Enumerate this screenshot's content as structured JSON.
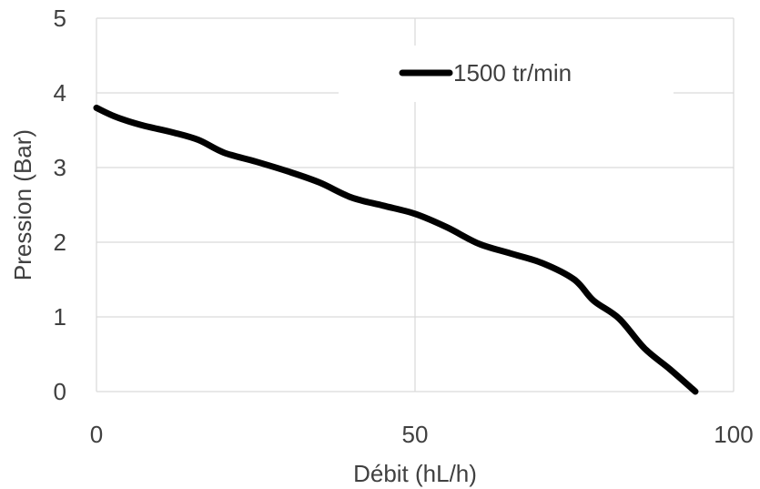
{
  "chart_data": {
    "type": "line",
    "xlabel": "Débit (hL/h)",
    "ylabel": "Pression (Bar)",
    "xlim": [
      0,
      100
    ],
    "ylim": [
      0,
      5
    ],
    "xticks": [
      0,
      50,
      100
    ],
    "yticks": [
      0,
      1,
      2,
      3,
      4,
      5
    ],
    "grid": true,
    "legend_position": "top-right",
    "series": [
      {
        "name": "1500 tr/min",
        "color": "#000000",
        "x": [
          0,
          3,
          7,
          12,
          16,
          20,
          25,
          30,
          35,
          40,
          45,
          50,
          55,
          60,
          65,
          70,
          75,
          78,
          82,
          86,
          90,
          94
        ],
        "y": [
          3.8,
          3.68,
          3.57,
          3.47,
          3.37,
          3.2,
          3.08,
          2.95,
          2.8,
          2.6,
          2.49,
          2.38,
          2.2,
          1.98,
          1.85,
          1.72,
          1.5,
          1.22,
          0.98,
          0.58,
          0.3,
          0.0
        ]
      }
    ]
  }
}
